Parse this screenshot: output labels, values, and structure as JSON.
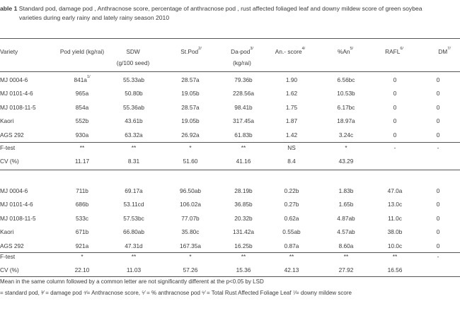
{
  "caption": {
    "label": "able 1",
    "text": "Standard pod, damage pod , Anthracnose score, percentage of anthracnose pod , rust affected foliaged leaf and downy mildew score  of green soybea",
    "text2": "varieties during early rainy and lately rainy  season 2010"
  },
  "header": {
    "variety": "Variety",
    "pod_yield": "Pod yield (kg/rai)",
    "sdw": "SDW",
    "sdw_unit": "(g/100 seed)",
    "st_pod": "St.Pod",
    "st_pod_sup": "2/",
    "da_pod": "Da-pod",
    "da_pod_sup": "3/",
    "da_pod_unit": "(kg/rai)",
    "an_score": "An.- score",
    "an_score_sup": "4/",
    "pct_an": "%An",
    "pct_an_sup": "5/",
    "rafl": "RAFL",
    "rafl_sup": "6/",
    "dm": "DM",
    "dm_sup": "7/"
  },
  "early_season": {
    "rows": [
      [
        "MJ 0004-6",
        "841a",
        "55.33ab",
        "28.57a",
        "79.36b",
        "1.90",
        "6.56bc",
        "0",
        "0"
      ],
      [
        "MJ 0101-4-6",
        "965a",
        "50.80b",
        "19.05b",
        "228.56a",
        "1.62",
        "10.53b",
        "0",
        "0"
      ],
      [
        "MJ 0108-11-5",
        "854a",
        "55.36ab",
        "28.57a",
        "98.41b",
        "1.75",
        "6.17bc",
        "0",
        "0"
      ],
      [
        "Kaori",
        "552b",
        "43.61b",
        "19.05b",
        "317.45a",
        "1.87",
        "18.97a",
        "0",
        "0"
      ],
      [
        "AGS 292",
        "930a",
        "63.32a",
        "26.92a",
        "61.83b",
        "1.42",
        "3.24c",
        "0",
        "0"
      ]
    ],
    "first_yield_sup": "1/",
    "ftest": [
      "F-test",
      "**",
      "**",
      "*",
      "**",
      "NS",
      "*",
      "-",
      "-"
    ],
    "cv": [
      "CV (%)",
      "11.17",
      "8.31",
      "51.60",
      "41.16",
      "8.4",
      "43.29",
      "",
      ""
    ]
  },
  "late_season": {
    "rows": [
      [
        "MJ 0004-6",
        "711b",
        "69.17a",
        "96.50ab",
        "28.19b",
        "0.22b",
        "1.83b",
        "47.0a",
        "0"
      ],
      [
        "MJ 0101-4-6",
        "686b",
        "53.11cd",
        "106.02a",
        "36.85b",
        "0.27b",
        "1.65b",
        "13.0c",
        "0"
      ],
      [
        "MJ 0108-11-5",
        "533c",
        "57.53bc",
        "77.07b",
        "20.32b",
        "0.62a",
        "4.87ab",
        "11.0c",
        "0"
      ],
      [
        "Kaori",
        "671b",
        "66.80ab",
        "35.80c",
        "131.42a",
        "0.55ab",
        "4.57ab",
        "38.0b",
        "0"
      ],
      [
        "AGS 292",
        "921a",
        "47.31d",
        "167.35a",
        "16.25b",
        "0.87a",
        "8.60a",
        "10.0c",
        "0"
      ]
    ],
    "ftest": [
      "F-test",
      "*",
      "**",
      "*",
      "**",
      "**",
      "**",
      "**",
      "-"
    ],
    "cv": [
      "CV (%)",
      "22.10",
      "11.03",
      "57.26",
      "15.36",
      "42.13",
      "27.92",
      "16.56",
      ""
    ]
  },
  "footnotes": {
    "note1": "Mean in the same column followed by a common letter are not significantly different at the p<0.05 by LSD",
    "note2": "= standard pod, ³⁄ = damage pod ⁴⁄= Anthracnose score, ⁵⁄ = %  anthracnose pod ⁶⁄ = Total Rust Affected Foliage Leaf ⁷⁄= downy mildew score"
  }
}
